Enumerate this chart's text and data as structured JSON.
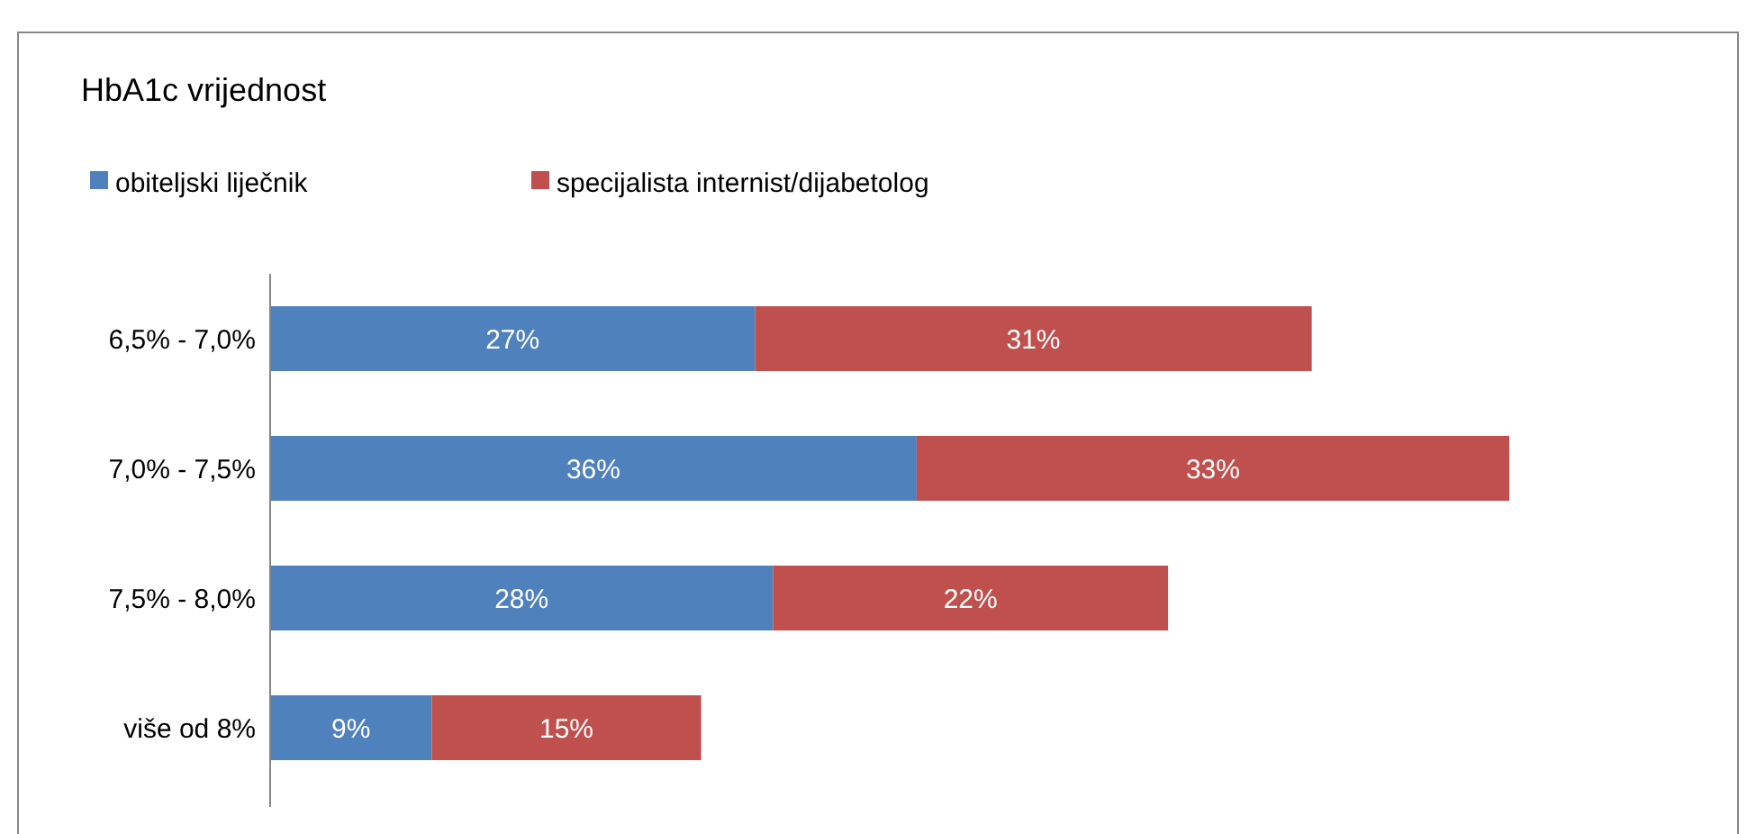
{
  "chart_data": {
    "type": "bar",
    "orientation": "horizontal",
    "stacked": true,
    "title": "HbA1c vrijednost",
    "categories": [
      "6,5% - 7,0%",
      "7,0% - 7,5%",
      "7,5% - 8,0%",
      "više od 8%"
    ],
    "series": [
      {
        "name": "obiteljski liječnik",
        "color": "#4f81bd",
        "values": [
          27,
          36,
          28,
          9
        ],
        "value_labels": [
          "27%",
          "36%",
          "28%",
          "9%"
        ]
      },
      {
        "name": "specijalista internist/dijabetolog",
        "color": "#c0504d",
        "values": [
          31,
          33,
          22,
          15
        ],
        "value_labels": [
          "31%",
          "33%",
          "22%",
          "15%"
        ]
      }
    ],
    "legend": "top left"
  }
}
